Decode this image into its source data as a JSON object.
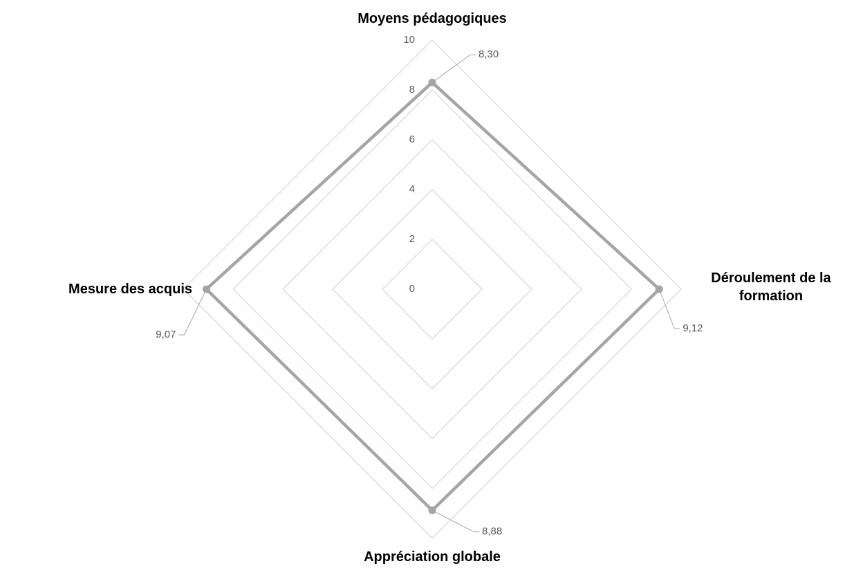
{
  "chart_data": {
    "type": "radar",
    "categories": [
      "Moyens pédagogiques",
      "Déroulement de la formation",
      "Appréciation globale",
      "Mesure des acquis"
    ],
    "values": [
      8.3,
      9.12,
      8.88,
      9.07
    ],
    "value_labels": [
      "8,30",
      "9,12",
      "8,88",
      "9,07"
    ],
    "color": "#a5a5a5",
    "ylim": [
      0,
      10
    ],
    "yticks": [
      0,
      2,
      4,
      6,
      8,
      10
    ],
    "grid": true
  }
}
